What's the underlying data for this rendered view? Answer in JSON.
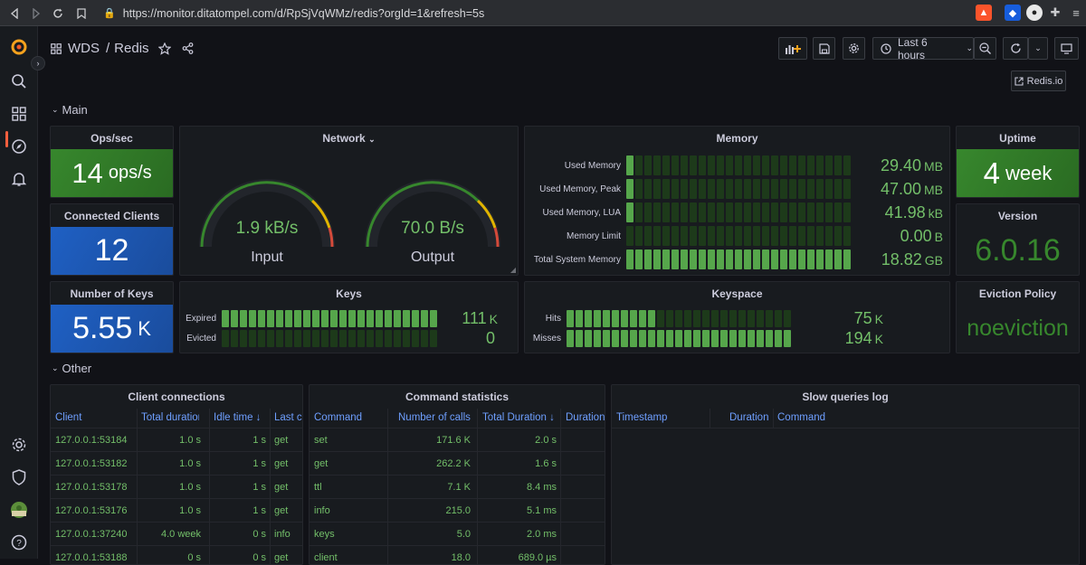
{
  "browser": {
    "url": "https://monitor.ditatompel.com/d/RpSjVqWMz/redis?orgId=1&refresh=5s"
  },
  "topnav": {
    "folder": "WDS",
    "separator": "/",
    "title": "Redis",
    "time_range": "Last 6 hours",
    "redisio_link": "Redis.io"
  },
  "rows": {
    "main": "Main",
    "other": "Other"
  },
  "ops": {
    "title": "Ops/sec",
    "value": "14",
    "unit": "ops/s",
    "color": "#37872d"
  },
  "clients": {
    "title": "Connected Clients",
    "value": "12",
    "color": "#1f60c4"
  },
  "keys_count": {
    "title": "Number of Keys",
    "value": "5.55",
    "unit": "K",
    "color": "#1f60c4"
  },
  "uptime": {
    "title": "Uptime",
    "value": "4",
    "unit": "week",
    "color": "#37872d"
  },
  "version": {
    "title": "Version",
    "value": "6.0.16"
  },
  "eviction": {
    "title": "Eviction Policy",
    "value": "noeviction"
  },
  "network": {
    "title": "Network",
    "input": {
      "value": "1.9 kB/s",
      "label": "Input"
    },
    "output": {
      "value": "70.0 B/s",
      "label": "Output"
    }
  },
  "memory": {
    "title": "Memory",
    "rows": [
      {
        "label": "Used Memory",
        "value": "29.40",
        "unit": "MB",
        "fill": 0.02
      },
      {
        "label": "Used Memory, Peak",
        "value": "47.00",
        "unit": "MB",
        "fill": 0.03
      },
      {
        "label": "Used Memory, LUA",
        "value": "41.98",
        "unit": "kB",
        "fill": 0.02
      },
      {
        "label": "Memory Limit",
        "value": "0.00",
        "unit": "B",
        "fill": 0.0
      },
      {
        "label": "Total System Memory",
        "value": "18.82",
        "unit": "GB",
        "fill": 1.0
      }
    ]
  },
  "keys": {
    "title": "Keys",
    "rows": [
      {
        "label": "Expired",
        "value": "111",
        "unit": "K",
        "fill": 1.0
      },
      {
        "label": "Evicted",
        "value": "0",
        "unit": "",
        "fill": 0.0
      }
    ]
  },
  "keyspace": {
    "title": "Keyspace",
    "rows": [
      {
        "label": "Hits",
        "value": "75",
        "unit": "K",
        "fill": 0.38
      },
      {
        "label": "Misses",
        "value": "194",
        "unit": "K",
        "fill": 1.0
      }
    ]
  },
  "client_connections": {
    "title": "Client connections",
    "headers": [
      "Client",
      "Total duration",
      "Idle time",
      "Last cmd"
    ],
    "rows": [
      [
        "127.0.0.1:53184",
        "1.0 s",
        "1 s",
        "get"
      ],
      [
        "127.0.0.1:53182",
        "1.0 s",
        "1 s",
        "get"
      ],
      [
        "127.0.0.1:53178",
        "1.0 s",
        "1 s",
        "get"
      ],
      [
        "127.0.0.1:53176",
        "1.0 s",
        "1 s",
        "get"
      ],
      [
        "127.0.0.1:37240",
        "4.0 week",
        "0 s",
        "info"
      ],
      [
        "127.0.0.1:53188",
        "0 s",
        "0 s",
        "get"
      ]
    ]
  },
  "command_stats": {
    "title": "Command statistics",
    "headers": [
      "Command",
      "Number of calls",
      "Total Duration",
      "Duration"
    ],
    "rows": [
      [
        "set",
        "171.6 K",
        "2.0 s"
      ],
      [
        "get",
        "262.2 K",
        "1.6 s"
      ],
      [
        "ttl",
        "7.1 K",
        "8.4 ms"
      ],
      [
        "info",
        "215.0",
        "5.1 ms"
      ],
      [
        "keys",
        "5.0",
        "2.0 ms"
      ],
      [
        "client",
        "18.0",
        "689.0 µs"
      ]
    ]
  },
  "slow_queries": {
    "title": "Slow queries log",
    "headers": [
      "Timestamp",
      "Duration",
      "Command"
    ]
  }
}
